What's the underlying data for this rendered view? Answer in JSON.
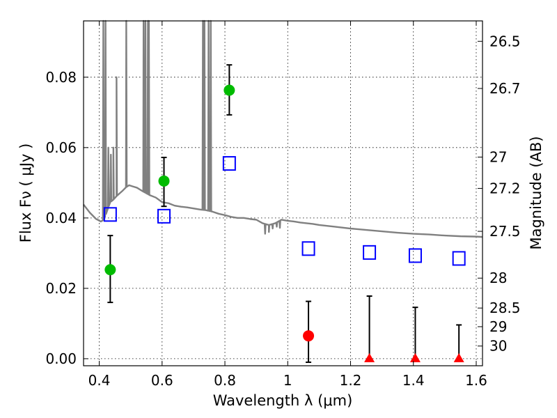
{
  "chart_data": {
    "type": "scatter",
    "xlabel": "Wavelength  λ (μm)",
    "ylabel": "Flux  Fν  ( μJy )",
    "ylabel_right": "Magnitude (AB)",
    "xlim": [
      0.35,
      1.62
    ],
    "ylim": [
      -0.002,
      0.096
    ],
    "x_ticks": [
      0.4,
      0.6,
      0.8,
      1.0,
      1.2,
      1.4,
      1.6
    ],
    "x_tick_labels": [
      "0.4",
      "0.6",
      "0.8",
      "1",
      "1.2",
      "1.4",
      "1.6"
    ],
    "y_ticks": [
      0.0,
      0.02,
      0.04,
      0.06,
      0.08
    ],
    "y_tick_labels": [
      "0.00",
      "0.02",
      "0.04",
      "0.06",
      "0.08"
    ],
    "right_ticks": [
      {
        "label": "26.5",
        "flux": 0.0902
      },
      {
        "label": "26.7",
        "flux": 0.0768
      },
      {
        "label": "27",
        "flux": 0.0573
      },
      {
        "label": "27.2",
        "flux": 0.0484
      },
      {
        "label": "27.5",
        "flux": 0.0362
      },
      {
        "label": "28",
        "flux": 0.0229
      },
      {
        "label": "28.5",
        "flux": 0.0144
      },
      {
        "label": "29",
        "flux": 0.0091
      },
      {
        "label": "30",
        "flux": 0.0036
      }
    ],
    "grid": true,
    "colors": {
      "detection": "#00bb00",
      "nondetection": "#ff0000",
      "model_box": "#0000ff",
      "sed": "#808080",
      "errorbar": "#000000"
    },
    "series": [
      {
        "marker": "circle",
        "color": "#00bb00",
        "points": [
          {
            "x": 0.435,
            "y": 0.0253,
            "err_low": 0.0093,
            "err_high": 0.0097
          },
          {
            "x": 0.606,
            "y": 0.0505,
            "err_low": 0.0072,
            "err_high": 0.0067
          },
          {
            "x": 0.814,
            "y": 0.0763,
            "err_low": 0.007,
            "err_high": 0.0072
          }
        ]
      },
      {
        "marker": "circle",
        "color": "#ff0000",
        "points": [
          {
            "x": 1.066,
            "y": 0.0065,
            "err_low": 0.0075,
            "err_high": 0.0098
          }
        ]
      },
      {
        "marker": "triangle",
        "color": "#ff0000",
        "points": [
          {
            "x": 1.26,
            "y": 0.0,
            "err_low": 0.0,
            "err_high": 0.0178
          },
          {
            "x": 1.406,
            "y": 0.0,
            "err_low": 0.0,
            "err_high": 0.0146
          },
          {
            "x": 1.545,
            "y": 0.0,
            "err_low": 0.0,
            "err_high": 0.0096
          }
        ]
      },
      {
        "marker": "open-square",
        "color": "#0000ff",
        "points": [
          {
            "x": 0.435,
            "y": 0.041
          },
          {
            "x": 0.606,
            "y": 0.0405
          },
          {
            "x": 0.814,
            "y": 0.0555
          },
          {
            "x": 1.066,
            "y": 0.0313
          },
          {
            "x": 1.26,
            "y": 0.0302
          },
          {
            "x": 1.406,
            "y": 0.0293
          },
          {
            "x": 1.545,
            "y": 0.0285
          }
        ]
      }
    ],
    "sed_model": {
      "color": "#808080",
      "continuum": [
        [
          0.35,
          0.0438
        ],
        [
          0.37,
          0.0415
        ],
        [
          0.39,
          0.0397
        ],
        [
          0.405,
          0.039
        ],
        [
          0.415,
          0.0395
        ],
        [
          0.425,
          0.042
        ],
        [
          0.435,
          0.0445
        ],
        [
          0.445,
          0.0452
        ],
        [
          0.455,
          0.0462
        ],
        [
          0.465,
          0.047
        ],
        [
          0.475,
          0.0478
        ],
        [
          0.485,
          0.0487
        ],
        [
          0.495,
          0.0493
        ],
        [
          0.505,
          0.049
        ],
        [
          0.52,
          0.0486
        ],
        [
          0.54,
          0.0475
        ],
        [
          0.56,
          0.0465
        ],
        [
          0.58,
          0.0458
        ],
        [
          0.6,
          0.0445
        ],
        [
          0.62,
          0.0442
        ],
        [
          0.64,
          0.0435
        ],
        [
          0.66,
          0.0432
        ],
        [
          0.68,
          0.043
        ],
        [
          0.7,
          0.0427
        ],
        [
          0.72,
          0.0424
        ],
        [
          0.74,
          0.0422
        ],
        [
          0.76,
          0.0418
        ],
        [
          0.78,
          0.0412
        ],
        [
          0.8,
          0.0408
        ],
        [
          0.82,
          0.0403
        ],
        [
          0.84,
          0.04
        ],
        [
          0.86,
          0.04
        ],
        [
          0.88,
          0.0397
        ],
        [
          0.9,
          0.0395
        ],
        [
          0.92,
          0.0385
        ],
        [
          0.94,
          0.038
        ],
        [
          0.96,
          0.0385
        ],
        [
          0.98,
          0.0395
        ],
        [
          1.0,
          0.0392
        ],
        [
          1.02,
          0.039
        ],
        [
          1.04,
          0.0387
        ],
        [
          1.06,
          0.0385
        ],
        [
          1.08,
          0.0383
        ],
        [
          1.1,
          0.038
        ],
        [
          1.15,
          0.0375
        ],
        [
          1.2,
          0.037
        ],
        [
          1.25,
          0.0366
        ],
        [
          1.3,
          0.0362
        ],
        [
          1.35,
          0.0358
        ],
        [
          1.4,
          0.0355
        ],
        [
          1.45,
          0.0353
        ],
        [
          1.5,
          0.035
        ],
        [
          1.55,
          0.0348
        ],
        [
          1.6,
          0.0347
        ],
        [
          1.62,
          0.0346
        ]
      ],
      "emission_lines": [
        {
          "x": 0.413,
          "peak": 0.096
        },
        {
          "x": 0.42,
          "peak": 0.096
        },
        {
          "x": 0.429,
          "peak": 0.06
        },
        {
          "x": 0.437,
          "peak": 0.058
        },
        {
          "x": 0.445,
          "peak": 0.06
        },
        {
          "x": 0.455,
          "peak": 0.08
        },
        {
          "x": 0.486,
          "peak": 0.096
        },
        {
          "x": 0.541,
          "peak": 0.096
        },
        {
          "x": 0.547,
          "peak": 0.096
        },
        {
          "x": 0.555,
          "peak": 0.096
        },
        {
          "x": 0.558,
          "peak": 0.096
        },
        {
          "x": 0.73,
          "peak": 0.096
        },
        {
          "x": 0.735,
          "peak": 0.096
        },
        {
          "x": 0.748,
          "peak": 0.096
        },
        {
          "x": 0.755,
          "peak": 0.096
        }
      ],
      "absorption_lines": [
        {
          "x": 0.928,
          "dip": 0.0355
        },
        {
          "x": 0.94,
          "dip": 0.036
        },
        {
          "x": 0.952,
          "dip": 0.037
        },
        {
          "x": 0.965,
          "dip": 0.0375
        },
        {
          "x": 0.975,
          "dip": 0.0372
        }
      ]
    }
  }
}
